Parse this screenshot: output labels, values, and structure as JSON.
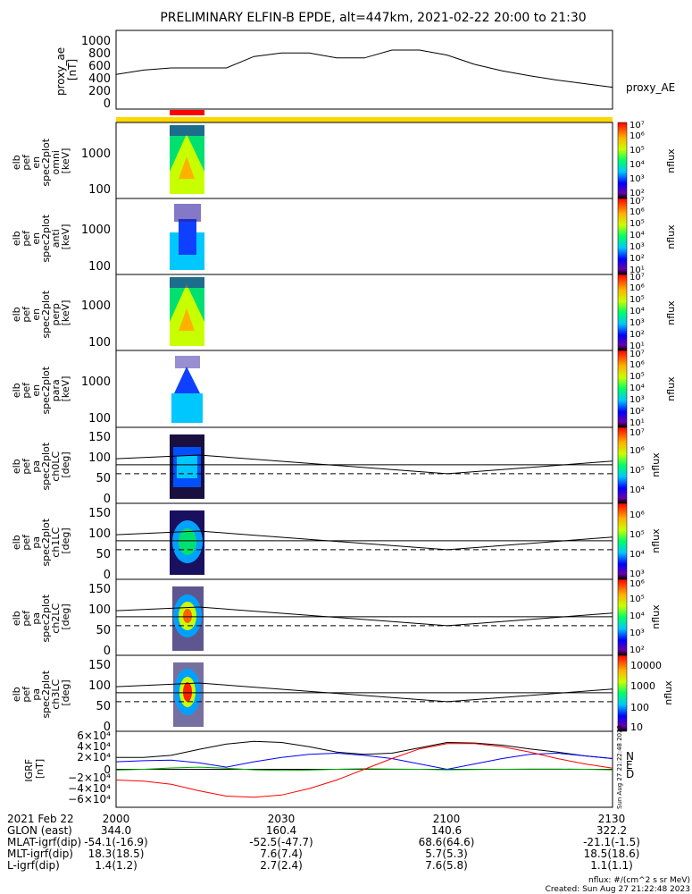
{
  "title": "PRELIMINARY ELFIN-B EPDE, alt=447km, 2021-02-22 20:00 to 21:30",
  "colors": {
    "yellow_bar": "#ffd700",
    "red_bar": "#ff0000"
  },
  "panels": {
    "proxy_ae": {
      "ylabel_lines": [
        "proxy_ae",
        "[nT]"
      ],
      "yticks": [
        "0",
        "200",
        "400",
        "600",
        "800",
        "1000"
      ],
      "right_label": "proxy_AE"
    },
    "spec_en_omni": {
      "ylabel_lines": [
        "elb",
        "pef",
        "en",
        "spec2plot",
        "omni",
        "[keV]"
      ],
      "yticks": [
        "100",
        "1000"
      ],
      "cbar_ticks": [
        "10²",
        "10³",
        "10⁴",
        "10⁵",
        "10⁶",
        "10⁷"
      ],
      "cbar_label": "nflux"
    },
    "spec_en_anti": {
      "ylabel_lines": [
        "elb",
        "pef",
        "en",
        "spec2plot",
        "anti",
        "[keV]"
      ],
      "yticks": [
        "100",
        "1000"
      ],
      "cbar_ticks": [
        "10¹",
        "10²",
        "10³",
        "10⁴",
        "10⁵",
        "10⁶",
        "10⁷"
      ],
      "cbar_label": "nflux"
    },
    "spec_en_perp": {
      "ylabel_lines": [
        "elb",
        "pef",
        "en",
        "spec2plot",
        "perp",
        "[keV]"
      ],
      "yticks": [
        "100",
        "1000"
      ],
      "cbar_ticks": [
        "10¹",
        "10²",
        "10³",
        "10⁴",
        "10⁵",
        "10⁶",
        "10⁷"
      ],
      "cbar_label": "nflux"
    },
    "spec_en_para": {
      "ylabel_lines": [
        "elb",
        "pef",
        "en",
        "spec2plot",
        "para",
        "[keV]"
      ],
      "yticks": [
        "100",
        "1000"
      ],
      "cbar_ticks": [
        "10¹",
        "10²",
        "10³",
        "10⁴",
        "10⁵",
        "10⁶",
        "10⁷"
      ],
      "cbar_label": "nflux"
    },
    "pa_ch0": {
      "ylabel_lines": [
        "elb",
        "pef",
        "pa",
        "spec2plot",
        "ch0LC",
        "[deg]"
      ],
      "yticks": [
        "0",
        "50",
        "100",
        "150"
      ],
      "cbar_ticks": [
        "10⁴",
        "10⁵",
        "10⁶",
        "10⁷"
      ],
      "cbar_label": "nflux"
    },
    "pa_ch1": {
      "ylabel_lines": [
        "elb",
        "pef",
        "pa",
        "spec2plot",
        "ch1LC",
        "[deg]"
      ],
      "yticks": [
        "0",
        "50",
        "100",
        "150"
      ],
      "cbar_ticks": [
        "10³",
        "10⁴",
        "10⁵",
        "10⁶"
      ],
      "cbar_label": "nflux"
    },
    "pa_ch2": {
      "ylabel_lines": [
        "elb",
        "pef",
        "pa",
        "spec2plot",
        "ch2LC",
        "[deg]"
      ],
      "yticks": [
        "0",
        "50",
        "100",
        "150"
      ],
      "cbar_ticks": [
        "10²",
        "10³",
        "10⁴",
        "10⁵",
        "10⁶"
      ],
      "cbar_label": "nflux"
    },
    "pa_ch3": {
      "ylabel_lines": [
        "elb",
        "pef",
        "pa",
        "spec2plot",
        "ch3LC",
        "[deg]"
      ],
      "yticks": [
        "0",
        "50",
        "100",
        "150"
      ],
      "cbar_ticks": [
        "10",
        "100",
        "1000",
        "10000"
      ],
      "cbar_label": "nflux"
    },
    "igrf": {
      "ylabel_lines": [
        "IGRF",
        "[nT]"
      ],
      "yticks": [
        "−6×10⁴",
        "−4×10⁴",
        "−2×10⁴",
        "0",
        "2×10⁴",
        "4×10⁴",
        "6×10⁴"
      ],
      "legend": [
        {
          "text": "N",
          "color": "#0000ff"
        },
        {
          "text": "E",
          "color": "#00aa00"
        },
        {
          "text": "D",
          "color": "#ff0000"
        }
      ],
      "side_text": "Sun Aug 27 21:22:48 2023"
    }
  },
  "footer": {
    "row_labels": [
      "2021 Feb 22",
      "GLON (east)",
      "MLAT-igrf(dip)",
      "MLT-igrf(dip)",
      "L-igrf(dip)"
    ],
    "columns": [
      {
        "time": "2000",
        "values": [
          "344.0",
          "-54.1(-16.9)",
          "18.3(18.5)",
          "1.4(1.2)"
        ]
      },
      {
        "time": "2030",
        "values": [
          "160.4",
          "-52.5(-47.7)",
          "7.6(7.4)",
          "2.7(2.4)"
        ]
      },
      {
        "time": "2100",
        "values": [
          "140.6",
          "68.6(64.6)",
          "5.7(5.3)",
          "7.6(5.8)"
        ]
      },
      {
        "time": "2130",
        "values": [
          "322.2",
          "-21.1(-1.5)",
          "18.5(18.6)",
          "1.1(1.1)"
        ]
      }
    ],
    "units_note": "nflux: #/(cm^2 s sr MeV)",
    "created": "Created: Sun Aug 27 21:22:48 2023"
  },
  "chart_data": [
    {
      "type": "line",
      "title": "PRELIMINARY ELFIN-B EPDE, alt=447km, 2021-02-22 20:00 to 21:30",
      "ylabel": "proxy_ae [nT]",
      "x": [
        "20:00",
        "20:05",
        "20:10",
        "20:15",
        "20:20",
        "20:25",
        "20:30",
        "20:35",
        "20:40",
        "20:45",
        "20:50",
        "20:55",
        "21:00",
        "21:05",
        "21:10",
        "21:15",
        "21:20",
        "21:25",
        "21:30"
      ],
      "series": [
        {
          "name": "proxy_AE",
          "values": [
            410,
            470,
            500,
            500,
            500,
            660,
            710,
            710,
            640,
            640,
            750,
            750,
            680,
            550,
            460,
            390,
            330,
            280,
            230
          ]
        }
      ],
      "ylim": [
        0,
        1000
      ]
    },
    {
      "type": "heatmap",
      "ylabel": "elb pef en spec2plot omni [keV]",
      "x_range": [
        "20:10",
        "20:16"
      ],
      "y_range_keV": [
        80,
        5000
      ],
      "color_range": [
        "1e2",
        "1e7"
      ],
      "colorbar_label": "nflux"
    },
    {
      "type": "heatmap",
      "ylabel": "elb pef en spec2plot anti [keV]",
      "x_range": [
        "20:10",
        "20:16"
      ],
      "y_range_keV": [
        80,
        5000
      ],
      "color_range": [
        "1e1",
        "1e7"
      ],
      "colorbar_label": "nflux"
    },
    {
      "type": "heatmap",
      "ylabel": "elb pef en spec2plot perp [keV]",
      "x_range": [
        "20:10",
        "20:16"
      ],
      "y_range_keV": [
        80,
        5000
      ],
      "color_range": [
        "1e1",
        "1e7"
      ],
      "colorbar_label": "nflux"
    },
    {
      "type": "heatmap",
      "ylabel": "elb pef en spec2plot para [keV]",
      "x_range": [
        "20:10",
        "20:16"
      ],
      "y_range_keV": [
        80,
        5000
      ],
      "color_range": [
        "1e1",
        "1e7"
      ],
      "colorbar_label": "nflux"
    },
    {
      "type": "line",
      "ylabel": "elb pef pa spec2plot ch0LC [deg]",
      "x": [
        "20:00",
        "20:15",
        "21:00",
        "21:30"
      ],
      "series": [
        {
          "values": [
            103,
            112,
            66,
            97
          ]
        },
        {
          "values": [
            88,
            88,
            88,
            88
          ]
        },
        {
          "values": [
            66,
            66,
            66,
            66
          ]
        }
      ],
      "ylim": [
        0,
        180
      ],
      "colorbar_label": "nflux"
    },
    {
      "type": "line",
      "ylabel": "elb pef pa spec2plot ch1LC [deg]",
      "x": [
        "20:00",
        "20:15",
        "21:00",
        "21:30"
      ],
      "series": [
        {
          "values": [
            103,
            112,
            66,
            97
          ]
        },
        {
          "values": [
            88,
            88,
            88,
            88
          ]
        },
        {
          "values": [
            66,
            66,
            66,
            66
          ]
        }
      ],
      "ylim": [
        0,
        180
      ],
      "colorbar_label": "nflux"
    },
    {
      "type": "line",
      "ylabel": "elb pef pa spec2plot ch2LC [deg]",
      "x": [
        "20:00",
        "20:15",
        "21:00",
        "21:30"
      ],
      "series": [
        {
          "values": [
            103,
            112,
            66,
            97
          ]
        },
        {
          "values": [
            88,
            88,
            88,
            88
          ]
        },
        {
          "values": [
            66,
            66,
            66,
            66
          ]
        }
      ],
      "ylim": [
        0,
        180
      ],
      "colorbar_label": "nflux"
    },
    {
      "type": "line",
      "ylabel": "elb pef pa spec2plot ch3LC [deg]",
      "x": [
        "20:00",
        "20:15",
        "21:00",
        "21:30"
      ],
      "series": [
        {
          "values": [
            103,
            112,
            66,
            97
          ]
        },
        {
          "values": [
            88,
            88,
            88,
            88
          ]
        },
        {
          "values": [
            66,
            66,
            66,
            66
          ]
        }
      ],
      "ylim": [
        0,
        180
      ],
      "colorbar_label": "nflux"
    },
    {
      "type": "line",
      "ylabel": "IGRF [nT]",
      "x": [
        "20:00",
        "20:05",
        "20:10",
        "20:15",
        "20:20",
        "20:25",
        "20:30",
        "20:35",
        "20:40",
        "20:45",
        "20:50",
        "20:55",
        "21:00",
        "21:05",
        "21:10",
        "21:15",
        "21:20",
        "21:25",
        "21:30"
      ],
      "series": [
        {
          "name": "total",
          "values": [
            22000,
            22000,
            26000,
            37000,
            47000,
            52000,
            50000,
            42000,
            32000,
            28000,
            30000,
            40000,
            50000,
            49000,
            45000,
            38000,
            32000,
            25000,
            20000
          ]
        },
        {
          "name": "N",
          "values": [
            14000,
            16000,
            17000,
            12000,
            4000,
            14000,
            22000,
            28000,
            30000,
            26000,
            20000,
            10000,
            0,
            10000,
            20000,
            28000,
            30000,
            25000,
            20000
          ]
        },
        {
          "name": "E",
          "values": [
            -1500,
            0,
            2500,
            4000,
            2000,
            -1000,
            -2000,
            -1500,
            0,
            1000,
            500,
            0,
            -1000,
            -500,
            0,
            500,
            500,
            0,
            -1000
          ]
        },
        {
          "name": "D",
          "values": [
            -20000,
            -22000,
            -28000,
            -40000,
            -50000,
            -52000,
            -48000,
            -36000,
            -20000,
            0,
            20000,
            38000,
            48000,
            48000,
            42000,
            32000,
            20000,
            10000,
            2000
          ]
        }
      ],
      "ylim": [
        -60000,
        60000
      ]
    }
  ]
}
